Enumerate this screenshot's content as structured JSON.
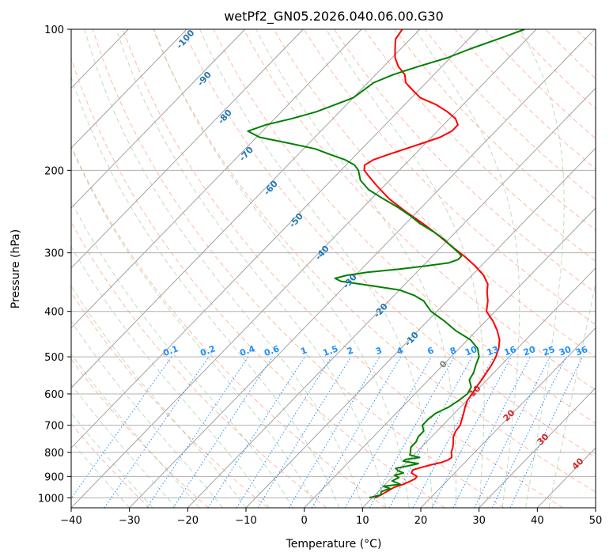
{
  "chart_data": {
    "type": "line",
    "subtype": "skew-t log-p",
    "title": "wetPf2_GN05.2026.040.06.00.G30",
    "xlabel": "Temperature (°C)",
    "ylabel": "Pressure (hPa)",
    "xlim": [
      -40,
      50
    ],
    "ylim": [
      1050,
      100
    ],
    "y_scale": "log",
    "x_ticks": [
      -40,
      -30,
      -20,
      -10,
      0,
      10,
      20,
      30,
      40,
      50
    ],
    "y_ticks": [
      100,
      200,
      300,
      400,
      500,
      600,
      700,
      800,
      900,
      1000
    ],
    "grid": true,
    "colors": {
      "temperature": "#ff0000",
      "dewpoint": "#008000",
      "isotherm": "#999999",
      "dry_adiabat": "#ff8c69",
      "moist_adiabat": "#8fbc8f",
      "mixing_ratio": "#1e90ff",
      "dry_label": "#1f77b4",
      "moist_label": "#d62728"
    },
    "series": [
      {
        "role": "temperature",
        "p": [
          1000,
          985,
          965,
          950,
          935,
          920,
          910,
          900,
          885,
          872,
          860,
          850,
          840,
          830,
          820,
          810,
          800,
          780,
          760,
          740,
          720,
          700,
          680,
          660,
          640,
          620,
          600,
          580,
          560,
          540,
          520,
          500,
          480,
          460,
          440,
          420,
          400,
          380,
          365,
          350,
          335,
          320,
          305,
          290,
          275,
          260,
          245,
          230,
          215,
          205,
          200,
          195,
          190,
          185,
          180,
          175,
          170,
          165,
          160,
          155,
          150,
          145,
          140,
          135,
          130,
          125,
          120,
          115,
          110,
          105,
          100
        ],
        "values": [
          10.5,
          11.0,
          11.6,
          12.0,
          13.1,
          13.8,
          14.2,
          14.1,
          12.6,
          12.3,
          13.5,
          14.6,
          16.0,
          16.7,
          16.9,
          16.5,
          16.0,
          15.4,
          14.6,
          13.7,
          13.2,
          13.0,
          12.3,
          11.6,
          10.8,
          10.1,
          9.8,
          9.4,
          9.1,
          8.7,
          8.3,
          7.7,
          6.8,
          5.5,
          3.6,
          1.3,
          -1.5,
          -3.0,
          -4.5,
          -5.8,
          -8.0,
          -11.0,
          -14.5,
          -18.5,
          -22.5,
          -27.0,
          -32.0,
          -37.0,
          -41.5,
          -44.5,
          -46.0,
          -46.8,
          -46.2,
          -44.5,
          -42.5,
          -40.5,
          -38.5,
          -37.5,
          -37.5,
          -39.0,
          -41.5,
          -44.5,
          -48.5,
          -51.0,
          -53.5,
          -55.0,
          -57.5,
          -59.5,
          -61.0,
          -62.5,
          -63.0
        ]
      },
      {
        "role": "dewpoint",
        "p": [
          1000,
          985,
          970,
          955,
          945,
          935,
          920,
          905,
          895,
          885,
          875,
          865,
          855,
          845,
          835,
          828,
          820,
          810,
          800,
          790,
          780,
          760,
          740,
          720,
          700,
          680,
          660,
          640,
          620,
          600,
          580,
          560,
          540,
          520,
          500,
          480,
          460,
          440,
          420,
          410,
          400,
          390,
          380,
          370,
          360,
          352,
          345,
          340,
          335,
          330,
          325,
          320,
          315,
          310,
          305,
          300,
          290,
          280,
          270,
          260,
          250,
          240,
          230,
          220,
          210,
          200,
          195,
          190,
          185,
          180,
          175,
          170,
          165,
          160,
          155,
          150,
          145,
          140,
          135,
          130,
          125,
          120,
          115,
          110,
          105,
          100
        ],
        "values": [
          9.5,
          11.0,
          10.5,
          11.5,
          10.0,
          12.5,
          10.6,
          11.2,
          10.1,
          11.2,
          9.9,
          9.1,
          10.8,
          12.2,
          9.2,
          9.3,
          11.4,
          9.3,
          9.0,
          8.6,
          8.2,
          8.2,
          7.7,
          7.7,
          6.5,
          6.5,
          6.8,
          8.0,
          8.6,
          9.0,
          8.5,
          7.0,
          6.5,
          5.6,
          4.8,
          3.2,
          0.5,
          -3.5,
          -7.0,
          -9.0,
          -11.0,
          -12.5,
          -14.0,
          -16.5,
          -20.0,
          -26.0,
          -31.5,
          -33.0,
          -31.5,
          -28.5,
          -23.5,
          -19.5,
          -16.0,
          -15.0,
          -15.0,
          -16.0,
          -18.5,
          -21.0,
          -24.0,
          -27.5,
          -30.5,
          -34.0,
          -38.0,
          -42.0,
          -45.0,
          -47.0,
          -48.5,
          -51.0,
          -54.5,
          -58.0,
          -63.5,
          -69.5,
          -72.5,
          -70.5,
          -67.0,
          -64.0,
          -62.0,
          -60.0,
          -59.5,
          -59.0,
          -57.0,
          -54.0,
          -50.5,
          -48.0,
          -45.0,
          -42.0
        ]
      }
    ],
    "mixing_ratio_labels": [
      "0.1",
      "0.2",
      "0.4",
      "0.6",
      "1",
      "1.5",
      "2",
      "3",
      "4",
      "6",
      "8",
      "10",
      "13",
      "16",
      "20",
      "25",
      "30",
      "36"
    ],
    "dry_adiabat_labels": [
      "-100",
      "-90",
      "-80",
      "-70",
      "-60",
      "-50",
      "-40",
      "-30",
      "-20",
      "-10",
      "0"
    ],
    "moist_adiabat_labels": [
      "10",
      "20",
      "30",
      "40"
    ]
  }
}
